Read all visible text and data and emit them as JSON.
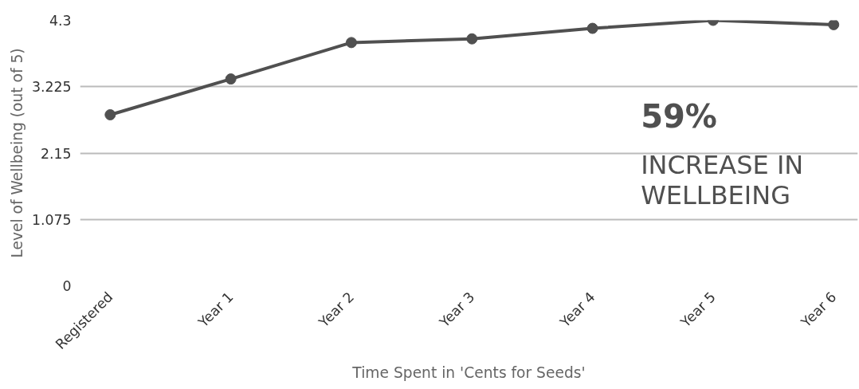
{
  "chart_data": {
    "type": "line",
    "xlabel": "Time Spent in 'Cents for Seeds'",
    "ylabel": "Level of Wellbeing (out of 5)",
    "categories": [
      "Registered",
      "Year 1",
      "Year 2",
      "Year 3",
      "Year 4",
      "Year 5",
      "Year 6"
    ],
    "series": [
      {
        "color": "#505050",
        "values": [
          2.77,
          3.35,
          3.94,
          4.0,
          4.17,
          4.3,
          4.23
        ]
      }
    ],
    "ylim": [
      0,
      4.3
    ],
    "yticks": [
      0,
      1.075,
      2.15,
      3.225,
      4.3
    ],
    "grid": "y",
    "marker": "circle",
    "line_style": "solid",
    "annotations": [
      "59%",
      "INCREASE IN WELLBEING"
    ]
  }
}
